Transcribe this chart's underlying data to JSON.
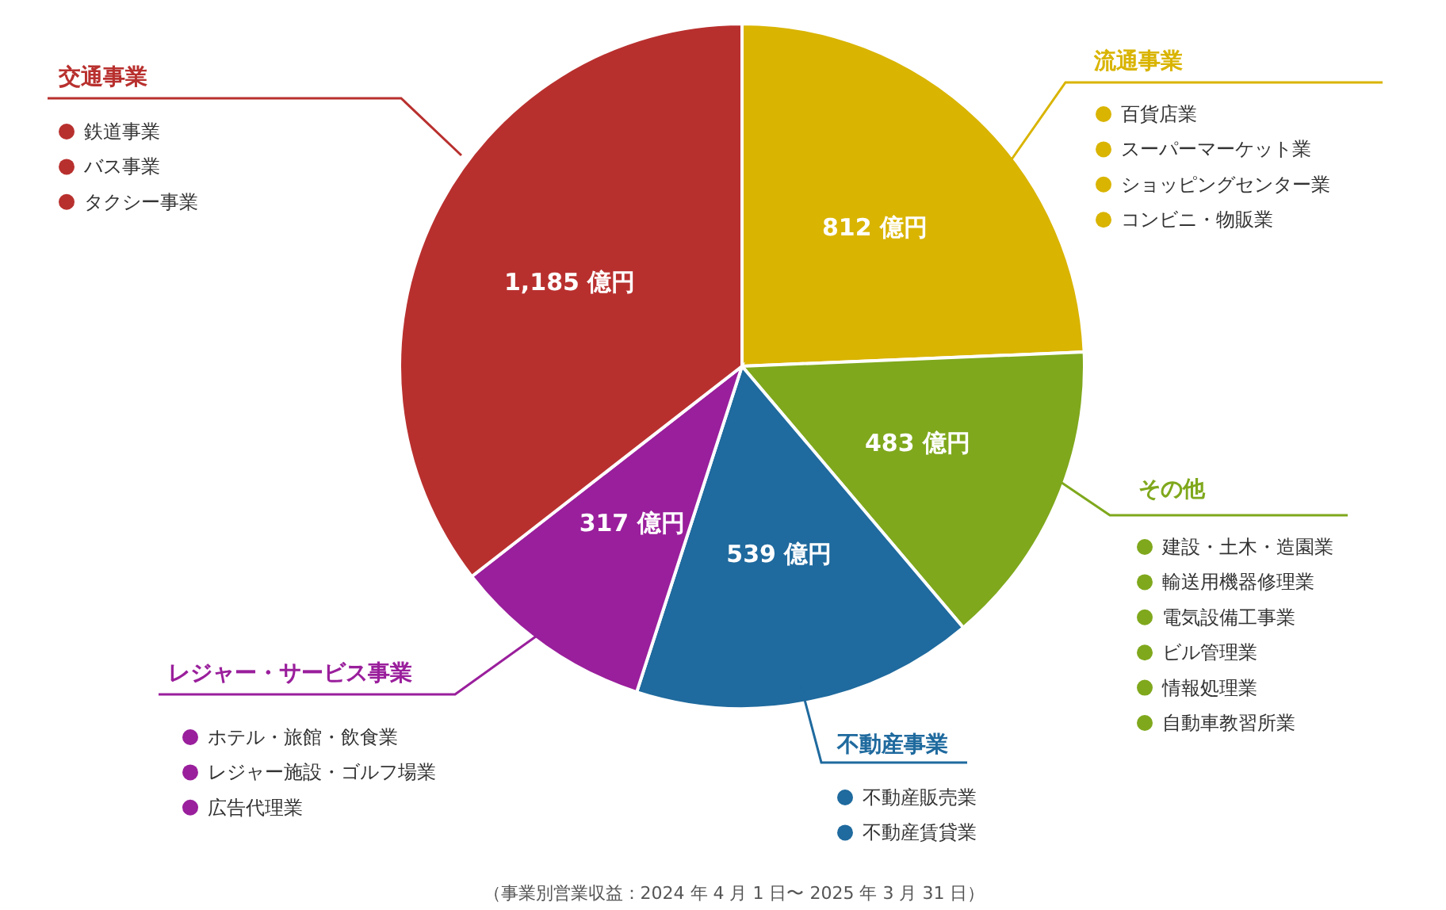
{
  "chart_data": {
    "type": "pie",
    "categories": [
      "流通事業",
      "その他",
      "不動産事業",
      "レジャー・サービス事業",
      "交通事業"
    ],
    "values": [
      812,
      483,
      539,
      317,
      1185
    ],
    "colors": [
      "#d9b400",
      "#7fa81c",
      "#1f6a9e",
      "#9a1f9c",
      "#b8302e"
    ],
    "value_labels": [
      "812 億円",
      "483 億円",
      "539 億円",
      "317 億円",
      "1,185 億円"
    ],
    "annotations": [
      "百貨店業",
      "スーパーマーケット業",
      "ショッピングセンター業",
      "コンビニ・物販業",
      "建設・土木・造園業",
      "輸送用機器修理業",
      "電気設備工事業",
      "ビル管理業",
      "情報処理業",
      "自動車教習所業",
      "不動産販売業",
      "不動産賃貸業",
      "ホテル・旅館・飲食業",
      "レジャー施設・ゴルフ場業",
      "広告代理業",
      "鉄道事業",
      "バス事業",
      "タクシー事業",
      "（事業別営業収益：2024 年 4 月 1 日〜 2025 年 3 月 31 日）"
    ]
  }
}
